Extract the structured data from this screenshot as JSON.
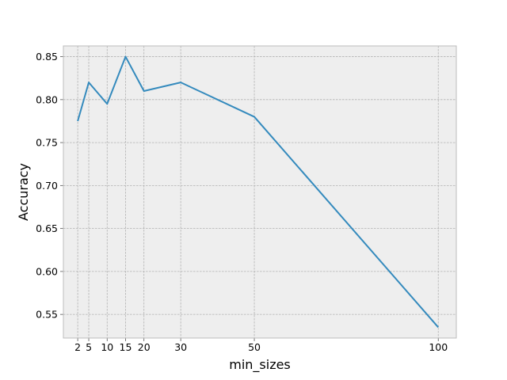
{
  "chart_data": {
    "type": "line",
    "title": "",
    "xlabel": "min_sizes",
    "ylabel": "Accuracy",
    "x": [
      2,
      5,
      10,
      15,
      20,
      30,
      50,
      100
    ],
    "series": [
      {
        "values": [
          0.775,
          0.82,
          0.795,
          0.85,
          0.81,
          0.82,
          0.78,
          0.535
        ]
      }
    ],
    "x_ticks": [
      2,
      5,
      10,
      15,
      20,
      30,
      50,
      100
    ],
    "y_ticks": [
      0.55,
      0.6,
      0.65,
      0.7,
      0.75,
      0.8,
      0.85
    ],
    "y_tick_labels": [
      "0.55",
      "0.60",
      "0.65",
      "0.70",
      "0.75",
      "0.80",
      "0.85"
    ],
    "xlim": [
      -1.9,
      104.9
    ],
    "ylim": [
      0.5225,
      0.8625
    ],
    "grid": true,
    "legend": "none",
    "colors": {
      "line": "#348abd",
      "plot_background": "#eeeeee",
      "grid": "#b2b2b2",
      "frame": "#bcbcbc"
    }
  }
}
